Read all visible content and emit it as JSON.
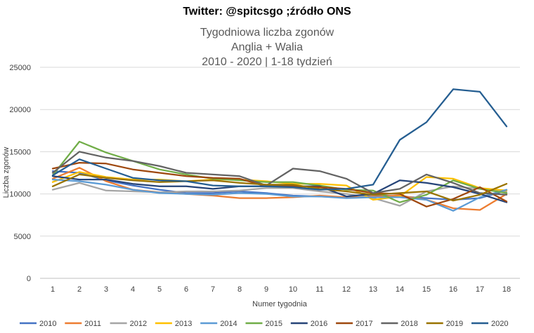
{
  "header": {
    "title": "Twitter: @spitcsgo ;źródło ONS"
  },
  "chart_data": {
    "type": "line",
    "title_lines": [
      "Tygodniowa liczba zgonów",
      "Anglia + Walia",
      "2010 - 2020 | 1-18 tydzień"
    ],
    "xlabel": "Numer tygodnia",
    "ylabel": "Liczba zgonów",
    "x": [
      1,
      2,
      3,
      4,
      5,
      6,
      7,
      8,
      9,
      10,
      11,
      12,
      13,
      14,
      15,
      16,
      17,
      18
    ],
    "ylim": [
      0,
      25000
    ],
    "yticks": [
      0,
      5000,
      10000,
      15000,
      20000,
      25000
    ],
    "grid": true,
    "legend_position": "bottom",
    "series": [
      {
        "name": "2010",
        "color": "#4472c4",
        "values": [
          12700,
          12500,
          11600,
          11000,
          10500,
          10100,
          10100,
          10300,
          10100,
          9800,
          9700,
          9600,
          9900,
          9700,
          9500,
          9300,
          9500,
          10400
        ]
      },
      {
        "name": "2011",
        "color": "#ed7d31",
        "values": [
          11800,
          13100,
          11500,
          10500,
          10200,
          10000,
          9800,
          9500,
          9500,
          9600,
          9800,
          9600,
          9700,
          9800,
          9300,
          8300,
          8100,
          10000
        ]
      },
      {
        "name": "2012",
        "color": "#a5a5a5",
        "values": [
          10500,
          11300,
          10400,
          10300,
          10200,
          10300,
          10300,
          10400,
          10700,
          10700,
          10300,
          10000,
          9500,
          8600,
          10300,
          10900,
          10600,
          10200
        ]
      },
      {
        "name": "2013",
        "color": "#ffc000",
        "values": [
          11400,
          12600,
          12000,
          11700,
          11700,
          11500,
          11700,
          11700,
          11500,
          11200,
          11200,
          11000,
          9300,
          9700,
          12000,
          11800,
          10700,
          10400
        ]
      },
      {
        "name": "2014",
        "color": "#5b9bd5",
        "values": [
          11700,
          11500,
          11100,
          10500,
          10100,
          10000,
          9900,
          10100,
          10000,
          9700,
          9700,
          9500,
          9600,
          9600,
          9300,
          8000,
          9600,
          10500
        ]
      },
      {
        "name": "2015",
        "color": "#70ad47",
        "values": [
          12200,
          16200,
          14900,
          13900,
          12900,
          12300,
          11800,
          11600,
          11400,
          11400,
          11000,
          10500,
          10400,
          9000,
          9900,
          11600,
          10600,
          10100
        ]
      },
      {
        "name": "2016",
        "color": "#264478",
        "values": [
          12100,
          11700,
          11700,
          11200,
          10900,
          10900,
          10600,
          10900,
          10900,
          10900,
          10900,
          9700,
          10000,
          11600,
          11300,
          10800,
          10000,
          9000
        ]
      },
      {
        "name": "2017",
        "color": "#9e480e",
        "values": [
          13000,
          13700,
          13600,
          12900,
          12500,
          12100,
          11900,
          11800,
          10900,
          10900,
          10800,
          10600,
          10100,
          10000,
          8500,
          9400,
          10800,
          9100
        ]
      },
      {
        "name": "2018",
        "color": "#636363",
        "values": [
          12500,
          15000,
          14300,
          13900,
          13300,
          12500,
          12300,
          12100,
          11000,
          13000,
          12700,
          11800,
          10100,
          10600,
          12300,
          11300,
          10100,
          9900
        ]
      },
      {
        "name": "2019",
        "color": "#997300",
        "values": [
          10900,
          12300,
          11900,
          11600,
          11400,
          11500,
          11600,
          11300,
          11100,
          11100,
          10600,
          10300,
          9900,
          10100,
          10300,
          9200,
          9900,
          11200
        ]
      },
      {
        "name": "2020",
        "color": "#255e91",
        "values": [
          12200,
          14100,
          13000,
          11900,
          11600,
          11500,
          11000,
          10900,
          10900,
          10800,
          10500,
          10600,
          11100,
          16400,
          18500,
          22400,
          22100,
          18000
        ]
      }
    ]
  }
}
